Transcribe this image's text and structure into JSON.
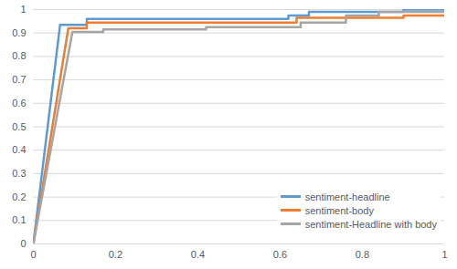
{
  "chart_data": {
    "type": "line",
    "xlim": [
      0,
      1
    ],
    "xticks": [
      0,
      0.2,
      0.4,
      0.6,
      0.8,
      1
    ],
    "ylim": [
      0,
      1
    ],
    "yticks": [
      0,
      0.1,
      0.2,
      0.3,
      0.4,
      0.5,
      0.6,
      0.7,
      0.8,
      0.9,
      1
    ],
    "grid": true,
    "legend": "lower right",
    "series": [
      {
        "name": "sentiment-headline",
        "color": "#5B9BD5",
        "x": [
          0,
          0.065,
          0.13,
          0.13,
          0.62,
          0.62,
          0.67,
          0.67,
          0.9,
          0.9,
          1
        ],
        "values": [
          0,
          0.935,
          0.935,
          0.96,
          0.96,
          0.975,
          0.975,
          0.99,
          0.99,
          1,
          1
        ]
      },
      {
        "name": "sentiment-body",
        "color": "#ED7D31",
        "x": [
          0,
          0.085,
          0.13,
          0.13,
          0.64,
          0.64,
          0.9,
          0.9,
          1
        ],
        "values": [
          0,
          0.92,
          0.92,
          0.945,
          0.945,
          0.965,
          0.965,
          0.975,
          0.975
        ]
      },
      {
        "name": "sentiment-Headline with body",
        "color": "#A5A5A5",
        "x": [
          0,
          0.095,
          0.17,
          0.17,
          0.42,
          0.42,
          0.65,
          0.65,
          0.76,
          0.76,
          0.84,
          0.84,
          1
        ],
        "values": [
          0,
          0.905,
          0.905,
          0.915,
          0.915,
          0.925,
          0.925,
          0.945,
          0.945,
          0.975,
          0.975,
          0.99,
          0.99
        ]
      }
    ]
  }
}
